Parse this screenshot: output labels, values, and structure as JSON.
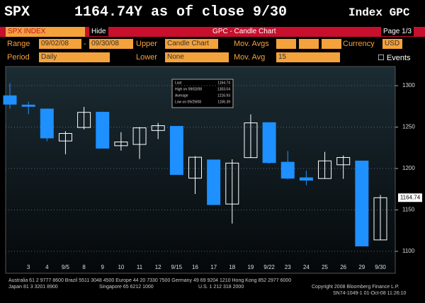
{
  "header": {
    "ticker": "SPX",
    "quote": "1164.74Y as of close 9/30",
    "right": "Index GPC"
  },
  "toolbar": {
    "security": "SPX INDEX",
    "hide": "Hide",
    "function": "GPC - Candle Chart",
    "page": "Page 1/3"
  },
  "settings": {
    "range_label": "Range",
    "start": "09/02/08",
    "dash": "-",
    "end": "09/30/08",
    "upper_label": "Upper",
    "upper": "Candle Chart",
    "mov_avgs_label": "Mov. Avgs",
    "currency_label": "Currency",
    "currency": "USD",
    "period_label": "Period",
    "period": "Daily",
    "lower_label": "Lower",
    "lower": "None",
    "mov_avg_label": "Mov. Avg",
    "mov_avg": "15",
    "events": "Events"
  },
  "info_box": {
    "last_label": "Last",
    "high_label": "High on 09/02/08",
    "average_label": "Average",
    "average": "1216.93",
    "low_label": "Low on 09/29/08"
  },
  "chart_data": {
    "type": "candlestick",
    "categories": [
      null,
      "3",
      "4",
      "9/5",
      "8",
      "9",
      "10",
      "11",
      "12",
      "9/15",
      "16",
      "17",
      "18",
      "19",
      "9/22",
      "23",
      "24",
      "25",
      "26",
      "29",
      "9/30"
    ],
    "open": [
      1287.83,
      1276.61,
      1271.8,
      1233.21,
      1249.5,
      1267.98,
      1227.5,
      1229.04,
      1245.88,
      1250.92,
      1188.31,
      1210.34,
      1157.08,
      1213.11,
      1255.37,
      1207.61,
      1188.79,
      1187.87,
      1204.47,
      1209.07,
      1113.78
    ],
    "high": [
      1303.04,
      1280.6,
      1271.8,
      1244.94,
      1274.42,
      1268.66,
      1243.9,
      1249.98,
      1255.09,
      1250.92,
      1214.84,
      1210.34,
      1211.14,
      1265.33,
      1255.37,
      1221.15,
      1197.41,
      1220.03,
      1215.77,
      1209.07,
      1168.03
    ],
    "low": [
      1272.2,
      1265.59,
      1232.83,
      1217.23,
      1247.12,
      1224.51,
      1221.6,
      1211.54,
      1235.5,
      1192.7,
      1169.28,
      1155.88,
      1133.5,
      1213.11,
      1205.61,
      1187.06,
      1179.79,
      1187.87,
      1187.54,
      1106.39,
      1113.78
    ],
    "close": [
      1277.58,
      1274.98,
      1236.83,
      1242.31,
      1267.79,
      1224.51,
      1232.04,
      1249.05,
      1251.7,
      1192.7,
      1213.6,
      1156.39,
      1206.51,
      1255.08,
      1207.09,
      1188.22,
      1185.87,
      1209.18,
      1213.27,
      1106.39,
      1164.74
    ],
    "up_color": "#ffffff",
    "down_color": "#1e90ff",
    "ylim": [
      1090,
      1320
    ],
    "yticks": [
      1100,
      1150,
      1200,
      1250,
      1300
    ],
    "grid": true
  },
  "footer": {
    "line1": "Australia 61 2 9777 8600 Brazil 5511 3048 4500 Europe 44 20 7330 7500 Germany 49 69 9204 1210 Hong Kong 852 2977 6000",
    "line2a": "Japan 81 3 3201 8900",
    "line2b": "Singapore 65 6212 1000",
    "line2c": "U.S. 1 212 318 2000",
    "line2d": "Copyright 2008 Bloomberg Finance L.P.",
    "line3": "SN74-1049-1 01-Oct-08 11:26:10"
  }
}
